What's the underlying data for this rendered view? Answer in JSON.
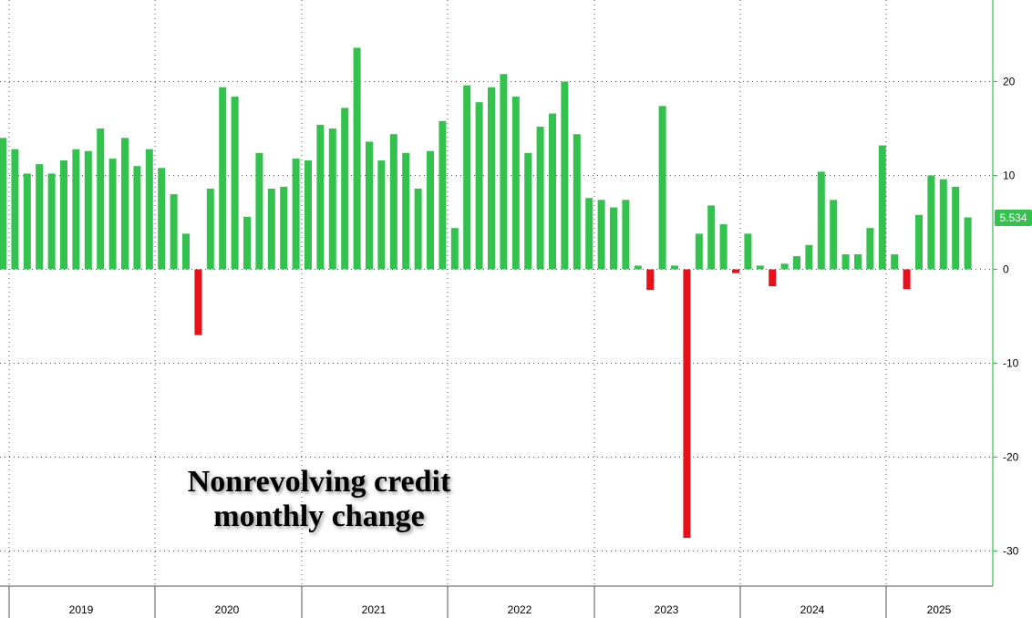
{
  "chart_data": {
    "type": "bar",
    "title": "Nonrevolving credit monthly change",
    "title_lines": [
      "Nonrevolving credit",
      "monthly change"
    ],
    "ylim": [
      -34,
      29
    ],
    "yticks": [
      20,
      10,
      0,
      -10,
      -20,
      -30
    ],
    "grid": true,
    "colors": {
      "positive": "#33c24d",
      "negative": "#e8111a",
      "axis": "#33c24d"
    },
    "last_value_label": "5.534",
    "years": [
      "2019",
      "2020",
      "2021",
      "2022",
      "2023",
      "2024",
      "2025"
    ],
    "values": [
      14.0,
      12.8,
      10.2,
      11.2,
      10.2,
      11.6,
      12.8,
      12.6,
      15.0,
      11.8,
      14.0,
      11.0,
      12.8,
      10.8,
      8.0,
      3.8,
      -7.0,
      8.6,
      19.4,
      18.4,
      5.6,
      12.4,
      8.6,
      8.8,
      11.8,
      11.6,
      15.4,
      15.0,
      17.2,
      23.6,
      13.6,
      11.6,
      14.4,
      12.4,
      8.6,
      12.6,
      15.8,
      4.4,
      19.6,
      17.8,
      19.4,
      20.8,
      18.4,
      12.4,
      15.2,
      16.6,
      20.0,
      14.4,
      7.6,
      7.4,
      6.6,
      7.4,
      0.4,
      -2.2,
      17.4,
      0.4,
      -28.6,
      3.8,
      6.8,
      4.8,
      -0.4,
      3.8,
      0.4,
      -1.8,
      0.6,
      1.4,
      2.6,
      10.4,
      7.4,
      1.6,
      1.6,
      4.4,
      13.2,
      1.6,
      -2.1,
      5.8,
      10.0,
      9.6,
      8.8,
      5.534
    ]
  }
}
